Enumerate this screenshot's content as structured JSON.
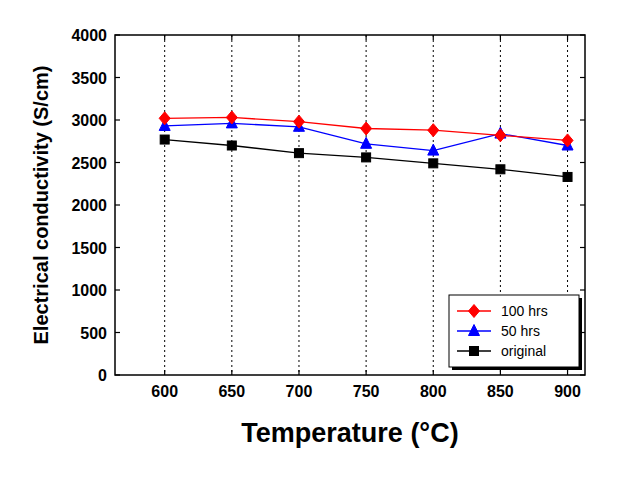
{
  "chart_data": {
    "type": "line",
    "x_label": "Temperature (°C)",
    "y_label": "Electrical conductivity (S/cm)",
    "x": [
      600,
      650,
      700,
      750,
      800,
      850,
      900
    ],
    "xlim": [
      563,
      913
    ],
    "xticks": [
      600,
      650,
      700,
      750,
      800,
      850,
      900
    ],
    "ylim": [
      0,
      4000
    ],
    "yticks": [
      0,
      500,
      1000,
      1500,
      2000,
      2500,
      3000,
      3500,
      4000
    ],
    "grid": "x",
    "legend": "lower right",
    "series": [
      {
        "name": "100 hrs",
        "color": "#ff0000",
        "marker": "diamond",
        "line_style": "solid",
        "values": [
          3020,
          3030,
          2980,
          2900,
          2880,
          2820,
          2760
        ]
      },
      {
        "name": "50 hrs",
        "color": "#0000ff",
        "marker": "triangle",
        "line_style": "solid",
        "values": [
          2930,
          2960,
          2920,
          2720,
          2640,
          2840,
          2700
        ]
      },
      {
        "name": "original",
        "color": "#000000",
        "marker": "square",
        "line_style": "solid",
        "values": [
          2770,
          2700,
          2610,
          2560,
          2490,
          2420,
          2330
        ]
      }
    ]
  }
}
